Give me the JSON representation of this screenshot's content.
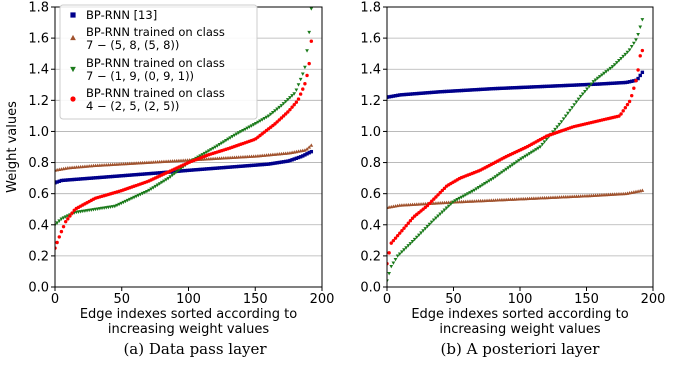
{
  "captions": [
    "(a) Data pass layer",
    "(b) A posteriori layer"
  ],
  "legend": {
    "entries": [
      "BP-RNN [13]",
      "BP-RNN trained on class",
      "7 − (5, 8, (5, 8))",
      "BP-RNN trained on class",
      "7 − (1, 9, (0, 9, 1))",
      "BP-RNN trained on class",
      "4 − (2, 5, (2, 5))"
    ]
  },
  "chart_data": [
    {
      "type": "scatter",
      "title": "",
      "xlabel": [
        "Edge indexes sorted according to",
        "increasing weight values"
      ],
      "ylabel": "Weight values",
      "xlim": [
        0,
        200
      ],
      "ylim": [
        0,
        1.8
      ],
      "xticks": [
        0,
        50,
        100,
        150,
        200
      ],
      "yticks": [
        0.0,
        0.2,
        0.4,
        0.6,
        0.8,
        1.0,
        1.2,
        1.4,
        1.6,
        1.8
      ],
      "grid": "horizontal",
      "legend_position": "top-left",
      "series": [
        {
          "name": "BP-RNN [13]",
          "color": "#00008b",
          "marker": "square",
          "points": [
            [
              0,
              0.67
            ],
            [
              5,
              0.685
            ],
            [
              20,
              0.695
            ],
            [
              50,
              0.715
            ],
            [
              80,
              0.735
            ],
            [
              100,
              0.75
            ],
            [
              130,
              0.77
            ],
            [
              160,
              0.79
            ],
            [
              175,
              0.81
            ],
            [
              185,
              0.84
            ],
            [
              192,
              0.87
            ]
          ]
        },
        {
          "name": "BP-RNN trained on class 7 − (5, 8, (5, 8))",
          "color": "#a0522d",
          "marker": "triangle-up",
          "points": [
            [
              0,
              0.75
            ],
            [
              10,
              0.765
            ],
            [
              30,
              0.78
            ],
            [
              60,
              0.795
            ],
            [
              90,
              0.81
            ],
            [
              120,
              0.825
            ],
            [
              150,
              0.84
            ],
            [
              175,
              0.86
            ],
            [
              188,
              0.88
            ],
            [
              192,
              0.91
            ]
          ]
        },
        {
          "name": "BP-RNN trained on class 7 − (1, 9, (0, 9, 1))",
          "color": "#1a7a1a",
          "marker": "triangle-down",
          "points": [
            [
              0,
              0.4
            ],
            [
              5,
              0.44
            ],
            [
              15,
              0.48
            ],
            [
              30,
              0.5
            ],
            [
              45,
              0.52
            ],
            [
              55,
              0.56
            ],
            [
              70,
              0.62
            ],
            [
              85,
              0.7
            ],
            [
              100,
              0.8
            ],
            [
              110,
              0.85
            ],
            [
              120,
              0.9
            ],
            [
              135,
              0.98
            ],
            [
              150,
              1.05
            ],
            [
              160,
              1.1
            ],
            [
              170,
              1.17
            ],
            [
              180,
              1.25
            ],
            [
              187,
              1.4
            ],
            [
              190,
              1.6
            ],
            [
              192,
              1.79
            ]
          ]
        },
        {
          "name": "BP-RNN trained on class 4 − (2, 5, (2, 5))",
          "color": "#ff0000",
          "marker": "circle",
          "points": [
            [
              0,
              0.25
            ],
            [
              4,
              0.34
            ],
            [
              8,
              0.42
            ],
            [
              15,
              0.5
            ],
            [
              30,
              0.57
            ],
            [
              50,
              0.62
            ],
            [
              70,
              0.68
            ],
            [
              90,
              0.76
            ],
            [
              100,
              0.8
            ],
            [
              115,
              0.85
            ],
            [
              130,
              0.89
            ],
            [
              150,
              0.95
            ],
            [
              165,
              1.05
            ],
            [
              175,
              1.13
            ],
            [
              182,
              1.2
            ],
            [
              187,
              1.3
            ],
            [
              190,
              1.4
            ],
            [
              192,
              1.58
            ]
          ]
        }
      ]
    },
    {
      "type": "scatter",
      "title": "",
      "xlabel": [
        "Edge indexes sorted according to",
        "increasing weight values"
      ],
      "ylabel": "",
      "xlim": [
        0,
        200
      ],
      "ylim": [
        0,
        1.8
      ],
      "xticks": [
        0,
        50,
        100,
        150,
        200
      ],
      "yticks": [
        0.0,
        0.2,
        0.4,
        0.6,
        0.8,
        1.0,
        1.2,
        1.4,
        1.6,
        1.8
      ],
      "grid": "horizontal",
      "series": [
        {
          "name": "BP-RNN [13]",
          "color": "#00008b",
          "marker": "square",
          "points": [
            [
              0,
              1.22
            ],
            [
              10,
              1.235
            ],
            [
              40,
              1.255
            ],
            [
              80,
              1.275
            ],
            [
              120,
              1.29
            ],
            [
              160,
              1.305
            ],
            [
              180,
              1.315
            ],
            [
              188,
              1.33
            ],
            [
              192,
              1.38
            ]
          ]
        },
        {
          "name": "BP-RNN trained on class 7 − (5, 8, (5, 8))",
          "color": "#a0522d",
          "marker": "triangle-up",
          "points": [
            [
              0,
              0.51
            ],
            [
              10,
              0.525
            ],
            [
              50,
              0.545
            ],
            [
              100,
              0.565
            ],
            [
              150,
              0.585
            ],
            [
              180,
              0.6
            ],
            [
              192,
              0.62
            ]
          ]
        },
        {
          "name": "BP-RNN trained on class 7 − (1, 9, (0, 9, 1))",
          "color": "#1a7a1a",
          "marker": "triangle-down",
          "points": [
            [
              0,
              0.04
            ],
            [
              3,
              0.13
            ],
            [
              8,
              0.2
            ],
            [
              20,
              0.3
            ],
            [
              35,
              0.43
            ],
            [
              50,
              0.55
            ],
            [
              65,
              0.62
            ],
            [
              80,
              0.7
            ],
            [
              100,
              0.82
            ],
            [
              115,
              0.9
            ],
            [
              130,
              1.05
            ],
            [
              145,
              1.22
            ],
            [
              155,
              1.32
            ],
            [
              170,
              1.42
            ],
            [
              182,
              1.52
            ],
            [
              188,
              1.6
            ],
            [
              192,
              1.72
            ]
          ]
        },
        {
          "name": "BP-RNN trained on class 4 − (2, 5, (2, 5))",
          "color": "#ff0000",
          "marker": "circle",
          "points": [
            [
              0,
              0.15
            ],
            [
              3,
              0.28
            ],
            [
              10,
              0.35
            ],
            [
              20,
              0.45
            ],
            [
              30,
              0.52
            ],
            [
              45,
              0.65
            ],
            [
              55,
              0.7
            ],
            [
              70,
              0.75
            ],
            [
              90,
              0.84
            ],
            [
              105,
              0.9
            ],
            [
              120,
              0.97
            ],
            [
              140,
              1.03
            ],
            [
              160,
              1.07
            ],
            [
              175,
              1.1
            ],
            [
              183,
              1.2
            ],
            [
              188,
              1.35
            ],
            [
              191,
              1.52
            ]
          ]
        }
      ]
    }
  ]
}
